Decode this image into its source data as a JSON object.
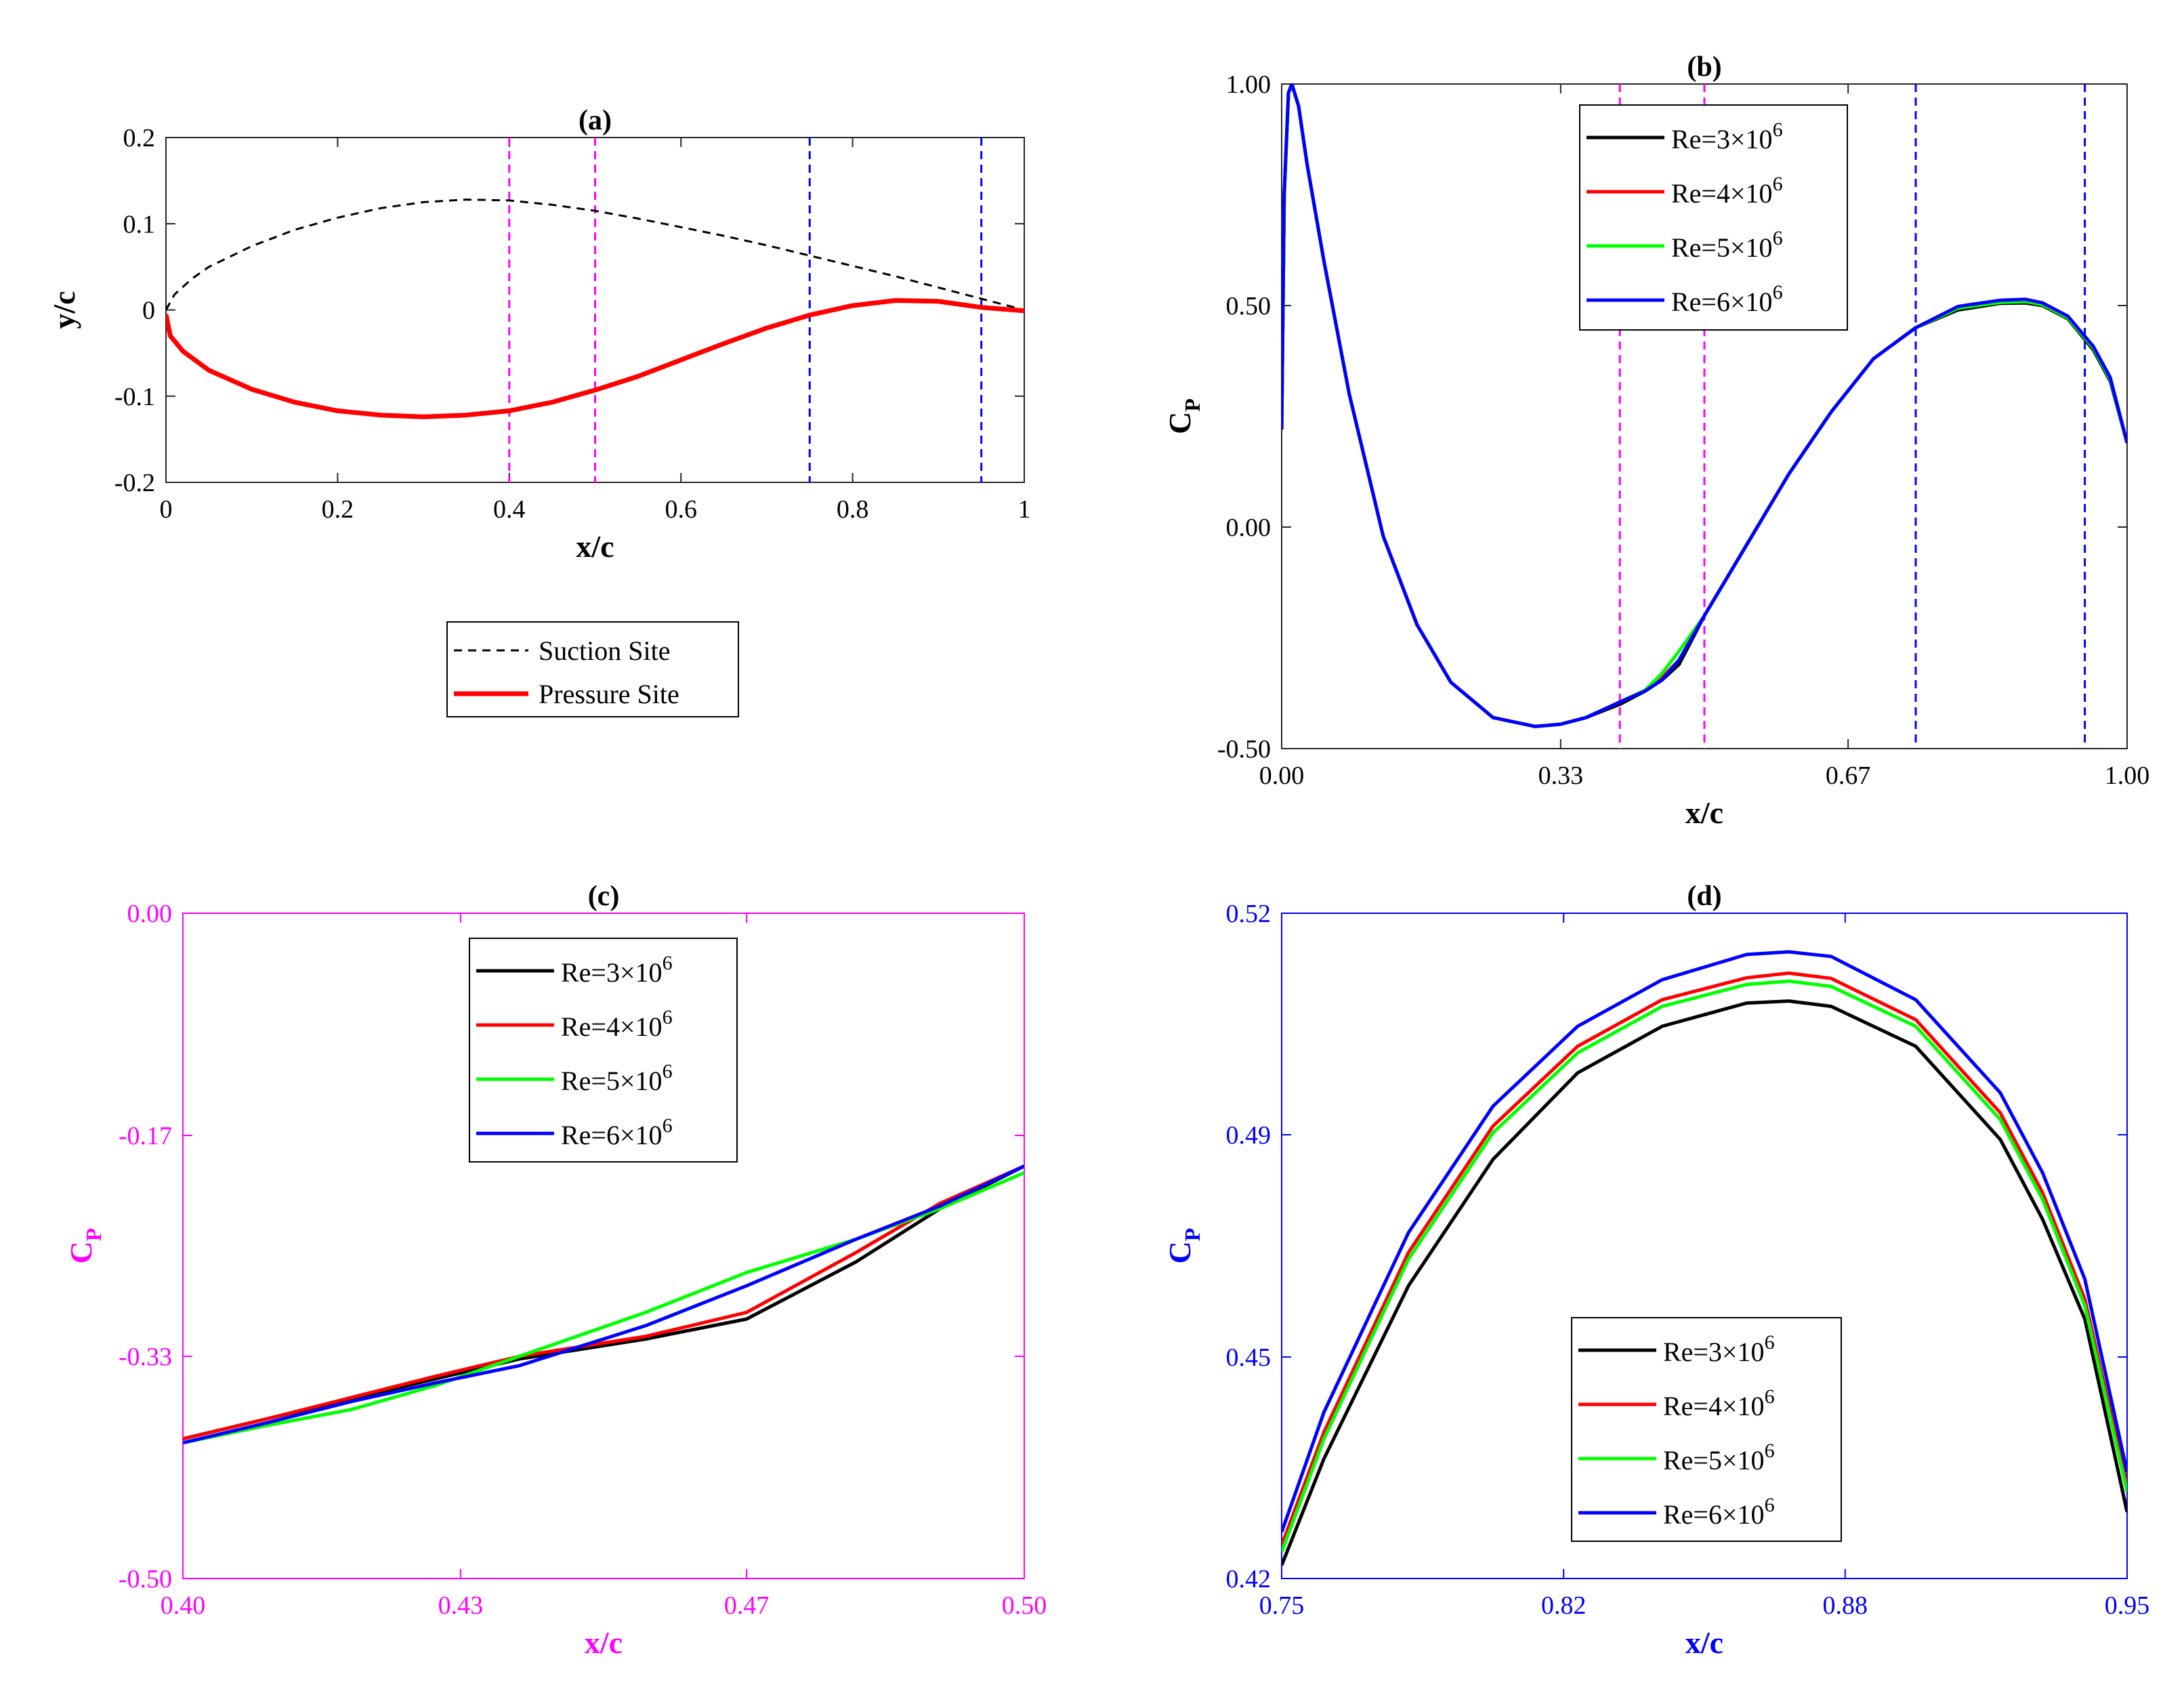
{
  "colors": {
    "black": "#000000",
    "red": "#ff0000",
    "green": "#00ff00",
    "blue": "#0000ff",
    "magenta": "#ff00ff",
    "grey_axis": "#262626"
  },
  "chart_data": [
    {
      "panel": "a",
      "type": "line",
      "title": "(a)",
      "xlabel": "x/c",
      "ylabel": "y/c",
      "xlim": [
        0,
        1
      ],
      "ylim": [
        -0.2,
        0.2
      ],
      "xticks": [
        0,
        0.2,
        0.4,
        0.6,
        0.8,
        1
      ],
      "xtick_labels": [
        "0",
        "0.2",
        "0.4",
        "0.6",
        "0.8",
        "1"
      ],
      "yticks": [
        -0.2,
        -0.1,
        0,
        0.1,
        0.2
      ],
      "ytick_labels": [
        "-0.2",
        "-0.1",
        "0",
        "0.1",
        "0.2"
      ],
      "vlines": [
        {
          "x": 0.4,
          "color": "magenta"
        },
        {
          "x": 0.5,
          "color": "magenta"
        },
        {
          "x": 0.75,
          "color": "blue"
        },
        {
          "x": 0.95,
          "color": "blue"
        }
      ],
      "legend_position": "below",
      "series": [
        {
          "name": "Suction Site",
          "color": "black",
          "style": "dashed",
          "x": [
            0,
            0.01,
            0.03,
            0.05,
            0.1,
            0.15,
            0.2,
            0.25,
            0.3,
            0.35,
            0.4,
            0.45,
            0.5,
            0.55,
            0.6,
            0.65,
            0.7,
            0.75,
            0.8,
            0.85,
            0.9,
            0.95,
            1.0
          ],
          "y": [
            0,
            0.018,
            0.036,
            0.05,
            0.074,
            0.093,
            0.107,
            0.118,
            0.125,
            0.128,
            0.127,
            0.122,
            0.115,
            0.106,
            0.096,
            0.086,
            0.075,
            0.063,
            0.051,
            0.039,
            0.026,
            0.013,
            0
          ]
        },
        {
          "name": "Pressure Site",
          "color": "red",
          "style": "solid",
          "x": [
            0,
            0.005,
            0.02,
            0.05,
            0.1,
            0.15,
            0.2,
            0.25,
            0.3,
            0.35,
            0.4,
            0.45,
            0.5,
            0.55,
            0.6,
            0.65,
            0.7,
            0.75,
            0.8,
            0.85,
            0.9,
            0.95,
            1.0
          ],
          "y": [
            -0.005,
            -0.03,
            -0.048,
            -0.07,
            -0.092,
            -0.107,
            -0.117,
            -0.122,
            -0.124,
            -0.122,
            -0.117,
            -0.107,
            -0.093,
            -0.077,
            -0.058,
            -0.039,
            -0.021,
            -0.006,
            0.005,
            0.011,
            0.01,
            0.003,
            -0.001
          ]
        }
      ]
    },
    {
      "panel": "b",
      "type": "line",
      "title": "(b)",
      "xlabel": "x/c",
      "ylabel_main": "C",
      "ylabel_sub": "P",
      "xlim": [
        0,
        1
      ],
      "ylim": [
        -0.5,
        1.0
      ],
      "xticks": [
        0,
        0.33,
        0.67,
        1
      ],
      "xtick_labels": [
        "0.00",
        "0.33",
        "0.67",
        "1.00"
      ],
      "yticks": [
        -0.5,
        0,
        0.5,
        1
      ],
      "ytick_labels": [
        "-0.50",
        "0.00",
        "0.50",
        "1.00"
      ],
      "vlines": [
        {
          "x": 0.4,
          "color": "magenta"
        },
        {
          "x": 0.5,
          "color": "magenta"
        },
        {
          "x": 0.75,
          "color": "blue"
        },
        {
          "x": 0.95,
          "color": "blue"
        }
      ],
      "legend_position": "top-center",
      "series": [
        {
          "name": "Re=3×10",
          "exp": "6",
          "color": "black",
          "x": [
            0,
            0.003,
            0.008,
            0.012,
            0.02,
            0.03,
            0.05,
            0.08,
            0.12,
            0.16,
            0.2,
            0.25,
            0.3,
            0.33,
            0.36,
            0.4,
            0.43,
            0.45,
            0.47,
            0.5,
            0.55,
            0.6,
            0.65,
            0.7,
            0.75,
            0.8,
            0.85,
            0.88,
            0.9,
            0.93,
            0.96,
            0.98,
            1.0
          ],
          "y": [
            0.22,
            0.75,
            0.98,
            1.0,
            0.95,
            0.82,
            0.6,
            0.3,
            -0.02,
            -0.22,
            -0.35,
            -0.43,
            -0.45,
            -0.445,
            -0.43,
            -0.4,
            -0.37,
            -0.345,
            -0.31,
            -0.2,
            -0.04,
            0.12,
            0.26,
            0.38,
            0.45,
            0.49,
            0.505,
            0.506,
            0.5,
            0.47,
            0.4,
            0.33,
            0.19
          ]
        },
        {
          "name": "Re=4×10",
          "exp": "6",
          "color": "red",
          "x": [
            0,
            0.003,
            0.008,
            0.012,
            0.02,
            0.03,
            0.05,
            0.08,
            0.12,
            0.16,
            0.2,
            0.25,
            0.3,
            0.33,
            0.36,
            0.4,
            0.43,
            0.45,
            0.47,
            0.5,
            0.55,
            0.6,
            0.65,
            0.7,
            0.75,
            0.8,
            0.85,
            0.88,
            0.9,
            0.93,
            0.96,
            0.98,
            1.0
          ],
          "y": [
            0.22,
            0.75,
            0.98,
            1.0,
            0.95,
            0.82,
            0.6,
            0.3,
            -0.02,
            -0.22,
            -0.35,
            -0.43,
            -0.45,
            -0.445,
            -0.43,
            -0.395,
            -0.368,
            -0.34,
            -0.3,
            -0.2,
            -0.04,
            0.12,
            0.26,
            0.38,
            0.45,
            0.495,
            0.508,
            0.51,
            0.503,
            0.473,
            0.405,
            0.335,
            0.19
          ]
        },
        {
          "name": "Re=5×10",
          "exp": "6",
          "color": "green",
          "x": [
            0,
            0.003,
            0.008,
            0.012,
            0.02,
            0.03,
            0.05,
            0.08,
            0.12,
            0.16,
            0.2,
            0.25,
            0.3,
            0.33,
            0.36,
            0.4,
            0.43,
            0.45,
            0.47,
            0.5,
            0.55,
            0.6,
            0.65,
            0.7,
            0.75,
            0.8,
            0.85,
            0.88,
            0.9,
            0.93,
            0.96,
            0.98,
            1.0
          ],
          "y": [
            0.22,
            0.75,
            0.98,
            1.0,
            0.95,
            0.82,
            0.6,
            0.3,
            -0.02,
            -0.22,
            -0.35,
            -0.43,
            -0.45,
            -0.445,
            -0.43,
            -0.395,
            -0.368,
            -0.33,
            -0.28,
            -0.2,
            -0.04,
            0.12,
            0.26,
            0.38,
            0.45,
            0.494,
            0.507,
            0.509,
            0.502,
            0.472,
            0.404,
            0.334,
            0.19
          ]
        },
        {
          "name": "Re=6×10",
          "exp": "6",
          "color": "blue",
          "x": [
            0,
            0.003,
            0.008,
            0.012,
            0.02,
            0.03,
            0.05,
            0.08,
            0.12,
            0.16,
            0.2,
            0.25,
            0.3,
            0.33,
            0.36,
            0.4,
            0.43,
            0.45,
            0.47,
            0.5,
            0.55,
            0.6,
            0.65,
            0.7,
            0.75,
            0.8,
            0.85,
            0.88,
            0.9,
            0.93,
            0.96,
            0.98,
            1.0
          ],
          "y": [
            0.22,
            0.75,
            0.98,
            1.0,
            0.95,
            0.82,
            0.6,
            0.3,
            -0.02,
            -0.22,
            -0.35,
            -0.43,
            -0.45,
            -0.445,
            -0.43,
            -0.395,
            -0.37,
            -0.345,
            -0.3,
            -0.2,
            -0.04,
            0.12,
            0.26,
            0.38,
            0.45,
            0.498,
            0.512,
            0.514,
            0.506,
            0.476,
            0.408,
            0.338,
            0.19
          ]
        }
      ]
    },
    {
      "panel": "c",
      "type": "line",
      "title": "(c)",
      "xlabel": "x/c",
      "ylabel_main": "C",
      "ylabel_sub": "P",
      "axis_color": "magenta",
      "xlim": [
        0.4,
        0.5
      ],
      "ylim": [
        -0.5,
        0
      ],
      "xticks": [
        0.4,
        0.433,
        0.467,
        0.5
      ],
      "xtick_labels": [
        "0.40",
        "0.43",
        "0.47",
        "0.50"
      ],
      "yticks": [
        -0.5,
        -0.333,
        -0.167,
        0
      ],
      "ytick_labels": [
        "-0.50",
        "-0.33",
        "-0.17",
        "0.00"
      ],
      "legend_position": "top-center",
      "series": [
        {
          "name": "Re=3×10",
          "exp": "6",
          "color": "black",
          "x": [
            0.4,
            0.41,
            0.42,
            0.43,
            0.44,
            0.455,
            0.467,
            0.48,
            0.49,
            0.5
          ],
          "y": [
            -0.395,
            -0.38,
            -0.365,
            -0.35,
            -0.335,
            -0.32,
            -0.305,
            -0.262,
            -0.222,
            -0.19
          ]
        },
        {
          "name": "Re=4×10",
          "exp": "6",
          "color": "red",
          "x": [
            0.4,
            0.41,
            0.42,
            0.43,
            0.44,
            0.455,
            0.467,
            0.48,
            0.49,
            0.5
          ],
          "y": [
            -0.395,
            -0.38,
            -0.364,
            -0.348,
            -0.333,
            -0.318,
            -0.3,
            -0.255,
            -0.218,
            -0.19
          ]
        },
        {
          "name": "Re=5×10",
          "exp": "6",
          "color": "green",
          "x": [
            0.4,
            0.41,
            0.42,
            0.43,
            0.44,
            0.455,
            0.467,
            0.48,
            0.49,
            0.5
          ],
          "y": [
            -0.398,
            -0.385,
            -0.373,
            -0.355,
            -0.333,
            -0.3,
            -0.27,
            -0.245,
            -0.222,
            -0.195
          ]
        },
        {
          "name": "Re=6×10",
          "exp": "6",
          "color": "blue",
          "x": [
            0.4,
            0.41,
            0.42,
            0.43,
            0.44,
            0.455,
            0.467,
            0.48,
            0.49,
            0.5
          ],
          "y": [
            -0.398,
            -0.383,
            -0.367,
            -0.353,
            -0.34,
            -0.31,
            -0.28,
            -0.245,
            -0.22,
            -0.19
          ]
        }
      ]
    },
    {
      "panel": "d",
      "type": "line",
      "title": "(d)",
      "xlabel": "x/c",
      "ylabel_main": "C",
      "ylabel_sub": "P",
      "axis_color": "blue",
      "xlim": [
        0.75,
        0.95
      ],
      "ylim": [
        0.42,
        0.52
      ],
      "xticks": [
        0.75,
        0.8167,
        0.8833,
        0.95
      ],
      "xtick_labels": [
        "0.75",
        "0.82",
        "0.88",
        "0.95"
      ],
      "yticks": [
        0.42,
        0.4533,
        0.4867,
        0.52
      ],
      "ytick_labels": [
        "0.42",
        "0.45",
        "0.49",
        "0.52"
      ],
      "legend_position": "bottom-center",
      "series": [
        {
          "name": "Re=3×10",
          "exp": "6",
          "color": "black",
          "x": [
            0.75,
            0.76,
            0.78,
            0.8,
            0.82,
            0.84,
            0.86,
            0.87,
            0.88,
            0.9,
            0.92,
            0.93,
            0.94,
            0.95
          ],
          "y": [
            0.422,
            0.438,
            0.464,
            0.483,
            0.496,
            0.503,
            0.5065,
            0.5068,
            0.506,
            0.5,
            0.486,
            0.474,
            0.459,
            0.43
          ]
        },
        {
          "name": "Re=4×10",
          "exp": "6",
          "color": "red",
          "x": [
            0.75,
            0.76,
            0.78,
            0.8,
            0.82,
            0.84,
            0.86,
            0.87,
            0.88,
            0.9,
            0.92,
            0.93,
            0.94,
            0.95
          ],
          "y": [
            0.425,
            0.442,
            0.469,
            0.488,
            0.5,
            0.507,
            0.5103,
            0.511,
            0.5102,
            0.504,
            0.49,
            0.478,
            0.462,
            0.434
          ]
        },
        {
          "name": "Re=5×10",
          "exp": "6",
          "color": "green",
          "x": [
            0.75,
            0.76,
            0.78,
            0.8,
            0.82,
            0.84,
            0.86,
            0.87,
            0.88,
            0.9,
            0.92,
            0.93,
            0.94,
            0.95
          ],
          "y": [
            0.424,
            0.441,
            0.468,
            0.487,
            0.499,
            0.506,
            0.5093,
            0.5098,
            0.509,
            0.503,
            0.489,
            0.477,
            0.461,
            0.433
          ]
        },
        {
          "name": "Re=6×10",
          "exp": "6",
          "color": "blue",
          "x": [
            0.75,
            0.76,
            0.78,
            0.8,
            0.82,
            0.84,
            0.86,
            0.87,
            0.88,
            0.9,
            0.92,
            0.93,
            0.94,
            0.95
          ],
          "y": [
            0.427,
            0.445,
            0.472,
            0.491,
            0.503,
            0.51,
            0.5138,
            0.5142,
            0.5135,
            0.507,
            0.493,
            0.481,
            0.465,
            0.436
          ]
        }
      ]
    }
  ]
}
